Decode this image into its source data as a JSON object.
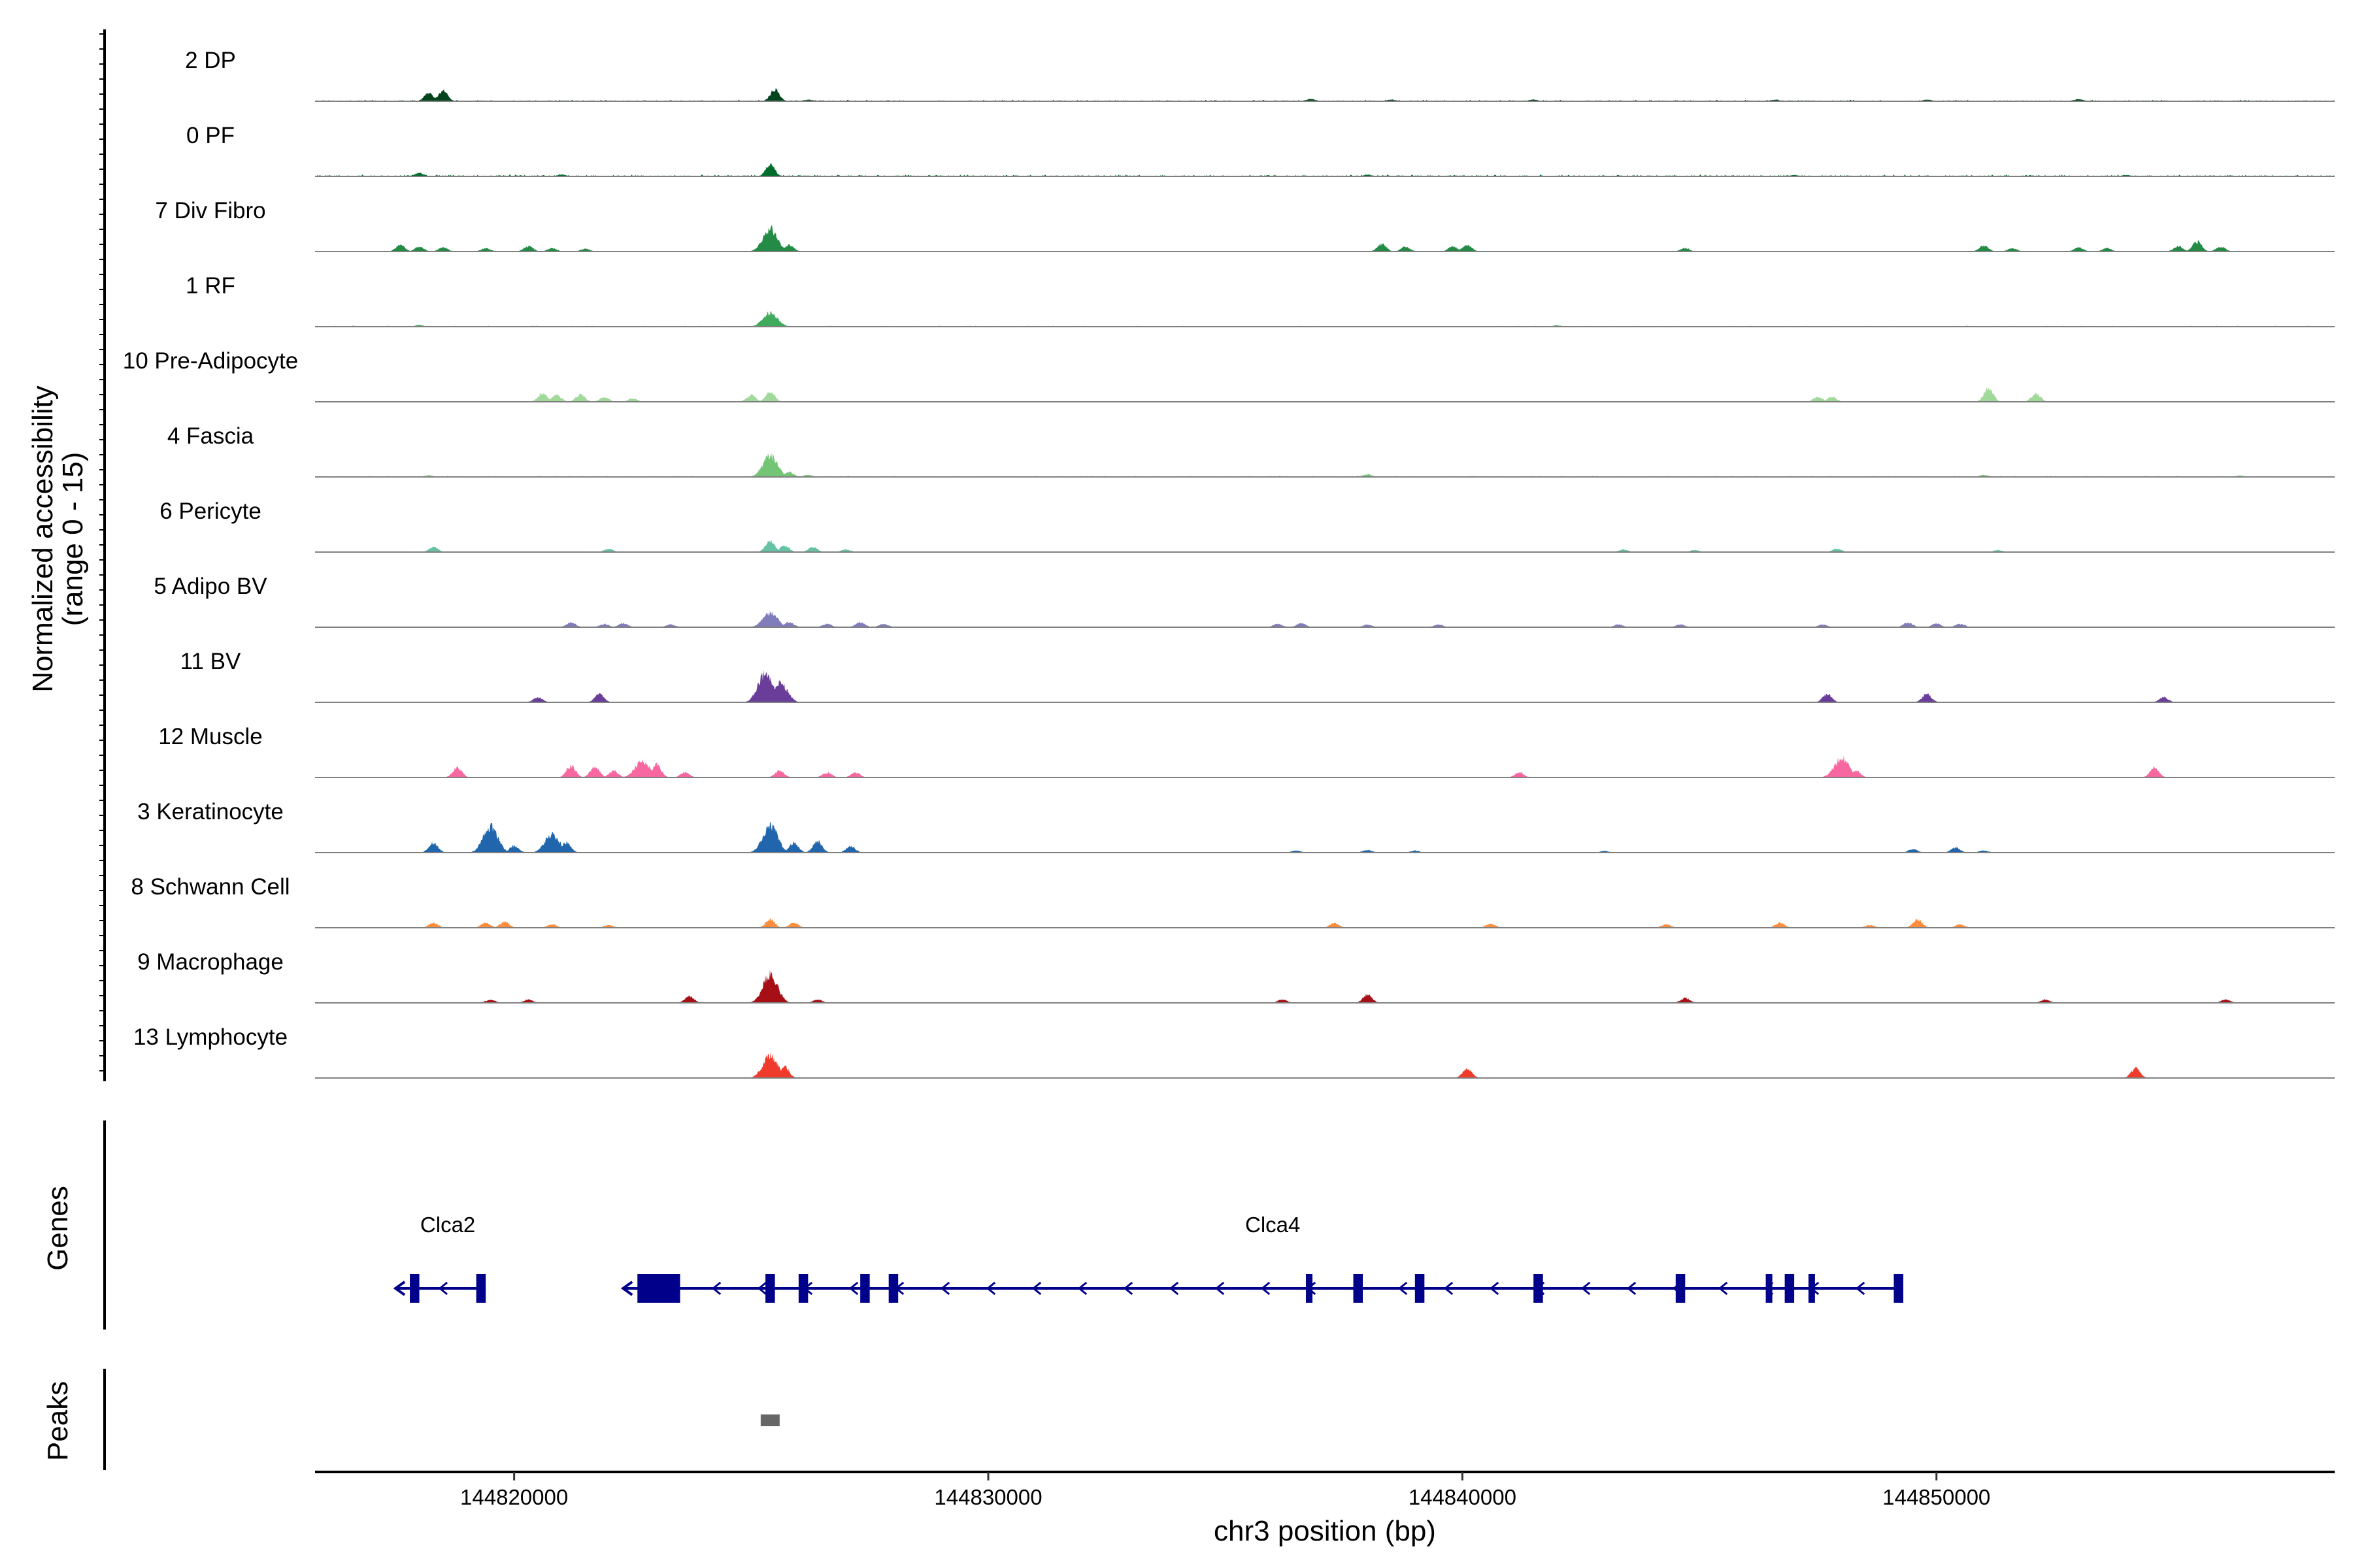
{
  "chart_data": {
    "type": "genome-track",
    "ylabel": "Normalized accessibility\n(range 0 - 15)",
    "xlabel": "chr3 position (bp)",
    "ylim": [
      0,
      15
    ],
    "xlim": [
      144815800,
      144858400
    ],
    "x_ticks": [
      144820000,
      144830000,
      144840000,
      144850000
    ],
    "x_tick_labels": [
      "144820000",
      "144830000",
      "144840000",
      "144850000"
    ],
    "panel_labels": {
      "genes": "Genes",
      "peaks": "Peaks"
    },
    "tracks": [
      {
        "name": "2 DP",
        "color": "#00441b",
        "noise": 0.35,
        "peaks": [
          [
            144818200,
            2.5
          ],
          [
            144818500,
            3.2
          ],
          [
            144825500,
            3.6
          ],
          [
            144826200,
            0.5
          ],
          [
            144836800,
            0.7
          ],
          [
            144838500,
            0.5
          ],
          [
            144841500,
            0.5
          ],
          [
            144846600,
            0.5
          ],
          [
            144849800,
            0.5
          ],
          [
            144853000,
            0.6
          ]
        ]
      },
      {
        "name": "0 PF",
        "color": "#006d2c",
        "noise": 0.45,
        "peaks": [
          [
            144818000,
            1.0
          ],
          [
            144825400,
            3.5
          ],
          [
            144821000,
            0.6
          ],
          [
            144838000,
            0.5
          ],
          [
            144847000,
            0.4
          ],
          [
            144854000,
            0.4
          ]
        ]
      },
      {
        "name": "7 Div Fibro",
        "color": "#238b45",
        "noise": 0.0,
        "peaks": [
          [
            144817600,
            2.0
          ],
          [
            144818000,
            1.5
          ],
          [
            144818500,
            1.2
          ],
          [
            144819400,
            1.0
          ],
          [
            144820300,
            1.6
          ],
          [
            144820800,
            1.0
          ],
          [
            144821500,
            0.8
          ],
          [
            144825400,
            7.0
          ],
          [
            144825800,
            2.0
          ],
          [
            144838300,
            2.2
          ],
          [
            144838800,
            1.5
          ],
          [
            144839800,
            1.5
          ],
          [
            144840100,
            2.0
          ],
          [
            144844700,
            1.0
          ],
          [
            144851000,
            1.8
          ],
          [
            144851600,
            1.0
          ],
          [
            144853000,
            1.2
          ],
          [
            144853600,
            1.0
          ],
          [
            144855100,
            1.6
          ],
          [
            144855500,
            3.0
          ],
          [
            144856000,
            1.5
          ]
        ]
      },
      {
        "name": "1 RF",
        "color": "#41ab5d",
        "noise": 0.25,
        "peaks": [
          [
            144825400,
            4.2
          ],
          [
            144818000,
            0.5
          ],
          [
            144842000,
            0.4
          ]
        ]
      },
      {
        "name": "10 Pre-Adipocyte",
        "color": "#a1d99b",
        "noise": 0.0,
        "peaks": [
          [
            144820600,
            2.5
          ],
          [
            144820900,
            2.0
          ],
          [
            144821400,
            2.2
          ],
          [
            144821900,
            1.5
          ],
          [
            144822500,
            1.0
          ],
          [
            144825000,
            2.0
          ],
          [
            144825400,
            3.0
          ],
          [
            144847500,
            1.5
          ],
          [
            144847800,
            1.5
          ],
          [
            144851100,
            4.0
          ],
          [
            144852100,
            2.5
          ]
        ]
      },
      {
        "name": "4 Fascia",
        "color": "#74c476",
        "noise": 0.3,
        "peaks": [
          [
            144825400,
            6.5
          ],
          [
            144825800,
            1.5
          ],
          [
            144826200,
            0.6
          ],
          [
            144838000,
            0.8
          ],
          [
            144818200,
            0.5
          ],
          [
            144851000,
            0.6
          ],
          [
            144856400,
            0.4
          ]
        ]
      },
      {
        "name": "6 Pericyte",
        "color": "#66c2a4",
        "noise": 0.0,
        "peaks": [
          [
            144818300,
            1.5
          ],
          [
            144822000,
            1.0
          ],
          [
            144825400,
            3.5
          ],
          [
            144825700,
            2.0
          ],
          [
            144826300,
            1.5
          ],
          [
            144827000,
            0.8
          ],
          [
            144843400,
            0.8
          ],
          [
            144844900,
            0.6
          ],
          [
            144847900,
            1.0
          ],
          [
            144851300,
            0.6
          ]
        ]
      },
      {
        "name": "5 Adipo BV",
        "color": "#807dba",
        "noise": 0.0,
        "peaks": [
          [
            144821200,
            1.5
          ],
          [
            144821900,
            1.0
          ],
          [
            144822300,
            1.2
          ],
          [
            144823300,
            0.8
          ],
          [
            144825400,
            4.5
          ],
          [
            144825800,
            1.5
          ],
          [
            144826600,
            1.0
          ],
          [
            144827300,
            1.5
          ],
          [
            144827800,
            1.0
          ],
          [
            144836100,
            1.0
          ],
          [
            144836600,
            1.2
          ],
          [
            144838000,
            0.8
          ],
          [
            144839500,
            0.8
          ],
          [
            144843300,
            0.8
          ],
          [
            144844600,
            0.8
          ],
          [
            144847600,
            0.8
          ],
          [
            144849400,
            1.5
          ],
          [
            144850000,
            1.2
          ],
          [
            144850500,
            1.0
          ]
        ]
      },
      {
        "name": "11 BV",
        "color": "#6a3d9a",
        "noise": 0.0,
        "peaks": [
          [
            144820500,
            1.5
          ],
          [
            144821800,
            2.5
          ],
          [
            144825300,
            9.0
          ],
          [
            144825600,
            6.0
          ],
          [
            144847700,
            2.5
          ],
          [
            144849800,
            2.5
          ],
          [
            144854800,
            1.5
          ]
        ]
      },
      {
        "name": "12 Muscle",
        "color": "#f768a1",
        "noise": 0.0,
        "peaks": [
          [
            144818800,
            3.0
          ],
          [
            144821200,
            3.5
          ],
          [
            144821700,
            3.5
          ],
          [
            144822100,
            2.0
          ],
          [
            144822700,
            5.0
          ],
          [
            144823000,
            4.0
          ],
          [
            144823600,
            1.5
          ],
          [
            144825600,
            2.0
          ],
          [
            144826600,
            1.5
          ],
          [
            144827200,
            1.5
          ],
          [
            144841200,
            1.5
          ],
          [
            144848000,
            6.0
          ],
          [
            144848300,
            2.0
          ],
          [
            144854600,
            3.0
          ]
        ]
      },
      {
        "name": "3 Keratinocyte",
        "color": "#2166ac",
        "noise": 0.0,
        "peaks": [
          [
            144818300,
            3.0
          ],
          [
            144819500,
            8.0
          ],
          [
            144820000,
            2.0
          ],
          [
            144820800,
            5.5
          ],
          [
            144821100,
            3.0
          ],
          [
            144825400,
            8.5
          ],
          [
            144825900,
            3.0
          ],
          [
            144826400,
            3.5
          ],
          [
            144827100,
            2.0
          ],
          [
            144836500,
            0.6
          ],
          [
            144838000,
            0.8
          ],
          [
            144839000,
            0.6
          ],
          [
            144843000,
            0.5
          ],
          [
            144849500,
            1.0
          ],
          [
            144850400,
            1.5
          ],
          [
            144851000,
            0.6
          ]
        ]
      },
      {
        "name": "8 Schwann Cell",
        "color": "#fd8d3c",
        "noise": 0.0,
        "peaks": [
          [
            144818300,
            1.5
          ],
          [
            144819400,
            1.5
          ],
          [
            144819800,
            1.8
          ],
          [
            144820800,
            1.0
          ],
          [
            144822000,
            0.8
          ],
          [
            144825400,
            2.5
          ],
          [
            144825900,
            1.5
          ],
          [
            144837300,
            1.5
          ],
          [
            144840600,
            1.2
          ],
          [
            144844300,
            1.0
          ],
          [
            144846700,
            1.5
          ],
          [
            144848600,
            0.8
          ],
          [
            144849600,
            2.5
          ],
          [
            144850500,
            1.0
          ]
        ]
      },
      {
        "name": "9 Macrophage",
        "color": "#a50f15",
        "noise": 0.0,
        "peaks": [
          [
            144819500,
            1.0
          ],
          [
            144820300,
            1.0
          ],
          [
            144823700,
            2.0
          ],
          [
            144825400,
            9.0
          ],
          [
            144826400,
            1.0
          ],
          [
            144836200,
            1.0
          ],
          [
            144838000,
            2.5
          ],
          [
            144844700,
            1.5
          ],
          [
            144852300,
            1.0
          ],
          [
            144856100,
            1.0
          ]
        ]
      },
      {
        "name": "13 Lymphocyte",
        "color": "#ef3b2c",
        "noise": 0.0,
        "peaks": [
          [
            144825400,
            7.0
          ],
          [
            144825700,
            3.5
          ],
          [
            144840100,
            3.0
          ],
          [
            144854200,
            3.0
          ]
        ]
      }
    ],
    "genes": [
      {
        "name": "Clca2",
        "start": 144817800,
        "end": 144819400,
        "strand": "-",
        "label_x": 144818600,
        "exons": [
          [
            144817800,
            144818000
          ],
          [
            144819200,
            144819400
          ]
        ]
      },
      {
        "name": "Clca4",
        "start": 144822600,
        "end": 144849300,
        "strand": "-",
        "label_x": 144836000,
        "exons": [
          [
            144822600,
            144823500
          ],
          [
            144825300,
            144825500
          ],
          [
            144826000,
            144826200
          ],
          [
            144827300,
            144827500
          ],
          [
            144827900,
            144828100
          ],
          [
            144836700,
            144836800
          ],
          [
            144837700,
            144837900
          ],
          [
            144839000,
            144839200
          ],
          [
            144841500,
            144841700
          ],
          [
            144844500,
            144844700
          ],
          [
            144846400,
            144846500
          ],
          [
            144846800,
            144847000
          ],
          [
            144847300,
            144847400
          ],
          [
            144849100,
            144849300
          ]
        ]
      }
    ],
    "peak_regions": [
      [
        144825200,
        144825600
      ]
    ]
  }
}
